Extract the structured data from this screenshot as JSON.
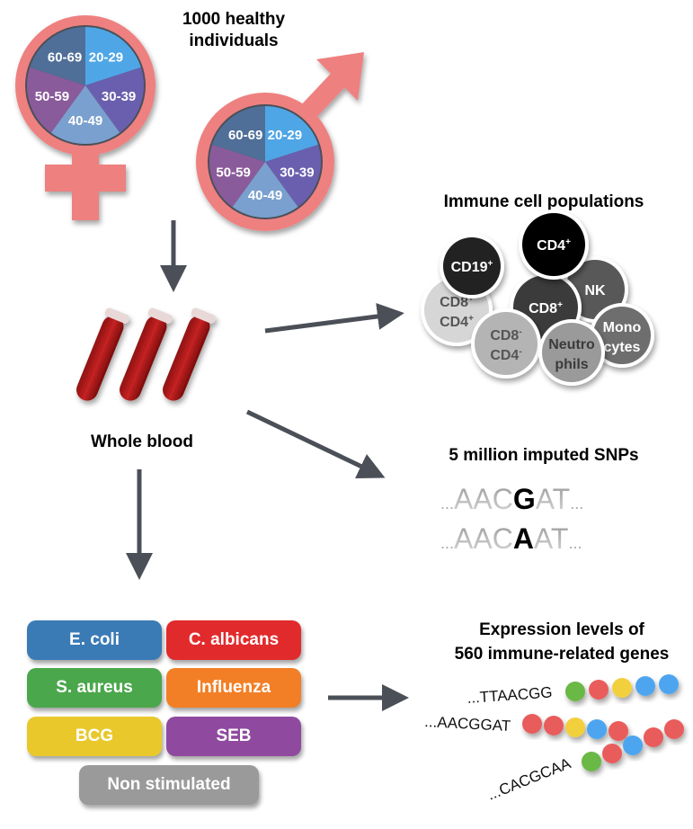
{
  "cohort": {
    "title_line1": "1000 healthy",
    "title_line2": "individuals",
    "age_groups": [
      "20-29",
      "30-39",
      "40-49",
      "50-59",
      "60-69"
    ],
    "age_colors": [
      "#4fa6e6",
      "#6a5fae",
      "#7aa0cf",
      "#8a5b9a",
      "#4f6f98"
    ],
    "symbol_color": "#ee8080"
  },
  "blood": {
    "label": "Whole blood"
  },
  "immune": {
    "title": "Immune cell populations",
    "cells": [
      {
        "line1": "CD19",
        "sup1": "+",
        "line2": "",
        "sup2": "",
        "color": "#222222",
        "text": "#ffffff"
      },
      {
        "line1": "CD4",
        "sup1": "+",
        "line2": "",
        "sup2": "",
        "color": "#000000",
        "text": "#ffffff"
      },
      {
        "line1": "NK",
        "sup1": "",
        "line2": "",
        "sup2": "",
        "color": "#585858",
        "text": "#ffffff"
      },
      {
        "line1": "CD8",
        "sup1": "+",
        "line2": "",
        "sup2": "",
        "color": "#3a3a3a",
        "text": "#ffffff"
      },
      {
        "line1": "CD8",
        "sup1": "+",
        "line2": "CD4",
        "sup2": "+",
        "color": "#d6d6d6",
        "text": "#555555"
      },
      {
        "line1": "CD8",
        "sup1": "-",
        "line2": "CD4",
        "sup2": "-",
        "color": "#b4b4b4",
        "text": "#555555"
      },
      {
        "line1": "Neutro",
        "sup1": "",
        "line2": "phils",
        "sup2": "",
        "color": "#9a9a9a",
        "text": "#3a3a3a"
      },
      {
        "line1": "Mono",
        "sup1": "",
        "line2": "cytes",
        "sup2": "",
        "color": "#6e6e6e",
        "text": "#ffffff"
      }
    ]
  },
  "snps": {
    "title": "5 million imputed SNPs",
    "seq1": {
      "pre": "AAC",
      "snp": "G",
      "post": "AT"
    },
    "seq2": {
      "pre": "AAC",
      "snp": "A",
      "post": "AT"
    },
    "ellipsis": "..."
  },
  "stimuli": [
    {
      "label": "E. coli",
      "color": "#3a7bb6"
    },
    {
      "label": "C. albicans",
      "color": "#e12a2c"
    },
    {
      "label": "S. aureus",
      "color": "#4aa74b"
    },
    {
      "label": "Influenza",
      "color": "#f27f25"
    },
    {
      "label": "BCG",
      "color": "#e9c82b"
    },
    {
      "label": "SEB",
      "color": "#8f4a9f"
    },
    {
      "label": "Non stimulated",
      "color": "#9a9a9a"
    }
  ],
  "expression": {
    "title_line1": "Expression levels of",
    "title_line2": "560 immune-related genes",
    "sequences": [
      "...TTAACGG",
      "...AACGGAT",
      "...CACGCAA"
    ],
    "bead_colors": {
      "green": "#6bb845",
      "red": "#e95c5c",
      "yellow": "#f2cf3c",
      "blue": "#4da5f0"
    }
  }
}
